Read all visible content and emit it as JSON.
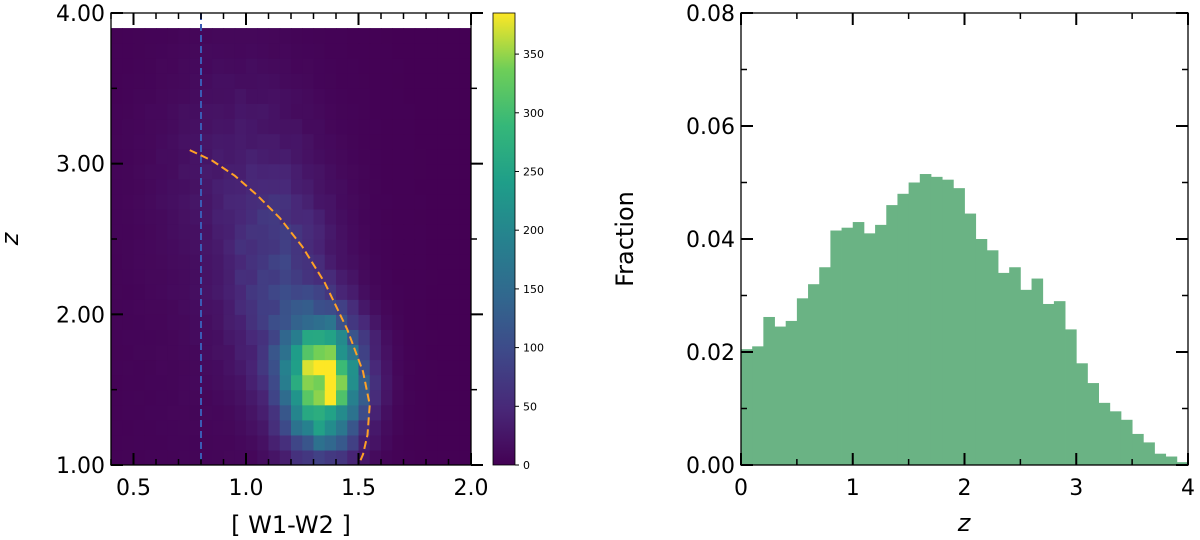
{
  "chart_data": [
    {
      "type": "heatmap",
      "title": "",
      "xlabel": "[ W1-W2 ]",
      "ylabel": "z",
      "xlim": [
        0.4,
        2.0
      ],
      "ylim": [
        1.0,
        4.0
      ],
      "x_ticks": [
        0.5,
        1.0,
        1.5,
        2.0
      ],
      "x_tick_labels": [
        "0.5",
        "1.0",
        "1.5",
        "2.0"
      ],
      "y_ticks": [
        1.0,
        2.0,
        3.0,
        4.0
      ],
      "y_tick_labels": [
        "1.00",
        "2.00",
        "3.00",
        "4.00"
      ],
      "data_ymax": 3.9,
      "bins": {
        "x_count": 32,
        "y_count": 29
      },
      "density_peak": {
        "x": 1.34,
        "y": 1.55,
        "value": 380
      },
      "colorbar": {
        "colormap": "viridis",
        "range": [
          0,
          385
        ],
        "ticks": [
          0,
          50,
          100,
          150,
          200,
          250,
          300,
          350
        ],
        "tick_labels": [
          "0",
          "50",
          "100",
          "150",
          "200",
          "250",
          "300",
          "350"
        ]
      },
      "vertical_line": {
        "x": 0.8,
        "style": "dashed",
        "color": "#3b5bb5"
      },
      "curve": {
        "style": "dashed",
        "color": "#ffa126",
        "points": [
          [
            0.75,
            3.09
          ],
          [
            0.85,
            3.02
          ],
          [
            0.95,
            2.92
          ],
          [
            1.05,
            2.79
          ],
          [
            1.15,
            2.64
          ],
          [
            1.25,
            2.45
          ],
          [
            1.35,
            2.21
          ],
          [
            1.45,
            1.9
          ],
          [
            1.52,
            1.62
          ],
          [
            1.55,
            1.4
          ],
          [
            1.54,
            1.2
          ],
          [
            1.52,
            1.07
          ],
          [
            1.5,
            1.0
          ]
        ]
      }
    },
    {
      "type": "bar",
      "title": "",
      "xlabel": "z",
      "ylabel": "Fraction",
      "xlim": [
        0,
        4
      ],
      "ylim": [
        0,
        0.08
      ],
      "x_ticks": [
        0,
        1,
        2,
        3,
        4
      ],
      "x_tick_labels": [
        "0",
        "1",
        "2",
        "3",
        "4"
      ],
      "y_ticks": [
        0.0,
        0.02,
        0.04,
        0.06,
        0.08
      ],
      "y_tick_labels": [
        "0.00",
        "0.02",
        "0.04",
        "0.06",
        "0.08"
      ],
      "bar_color": "#6ab384",
      "bin_start": 0.0,
      "bin_width": 0.1,
      "values": [
        0.0205,
        0.021,
        0.0262,
        0.0245,
        0.0255,
        0.0295,
        0.032,
        0.035,
        0.0415,
        0.042,
        0.043,
        0.041,
        0.0425,
        0.046,
        0.048,
        0.05,
        0.0515,
        0.051,
        0.0505,
        0.049,
        0.0445,
        0.04,
        0.038,
        0.034,
        0.035,
        0.031,
        0.033,
        0.0285,
        0.029,
        0.024,
        0.018,
        0.0145,
        0.011,
        0.0095,
        0.008,
        0.0055,
        0.004,
        0.002,
        0.0015,
        0.0005
      ]
    }
  ]
}
